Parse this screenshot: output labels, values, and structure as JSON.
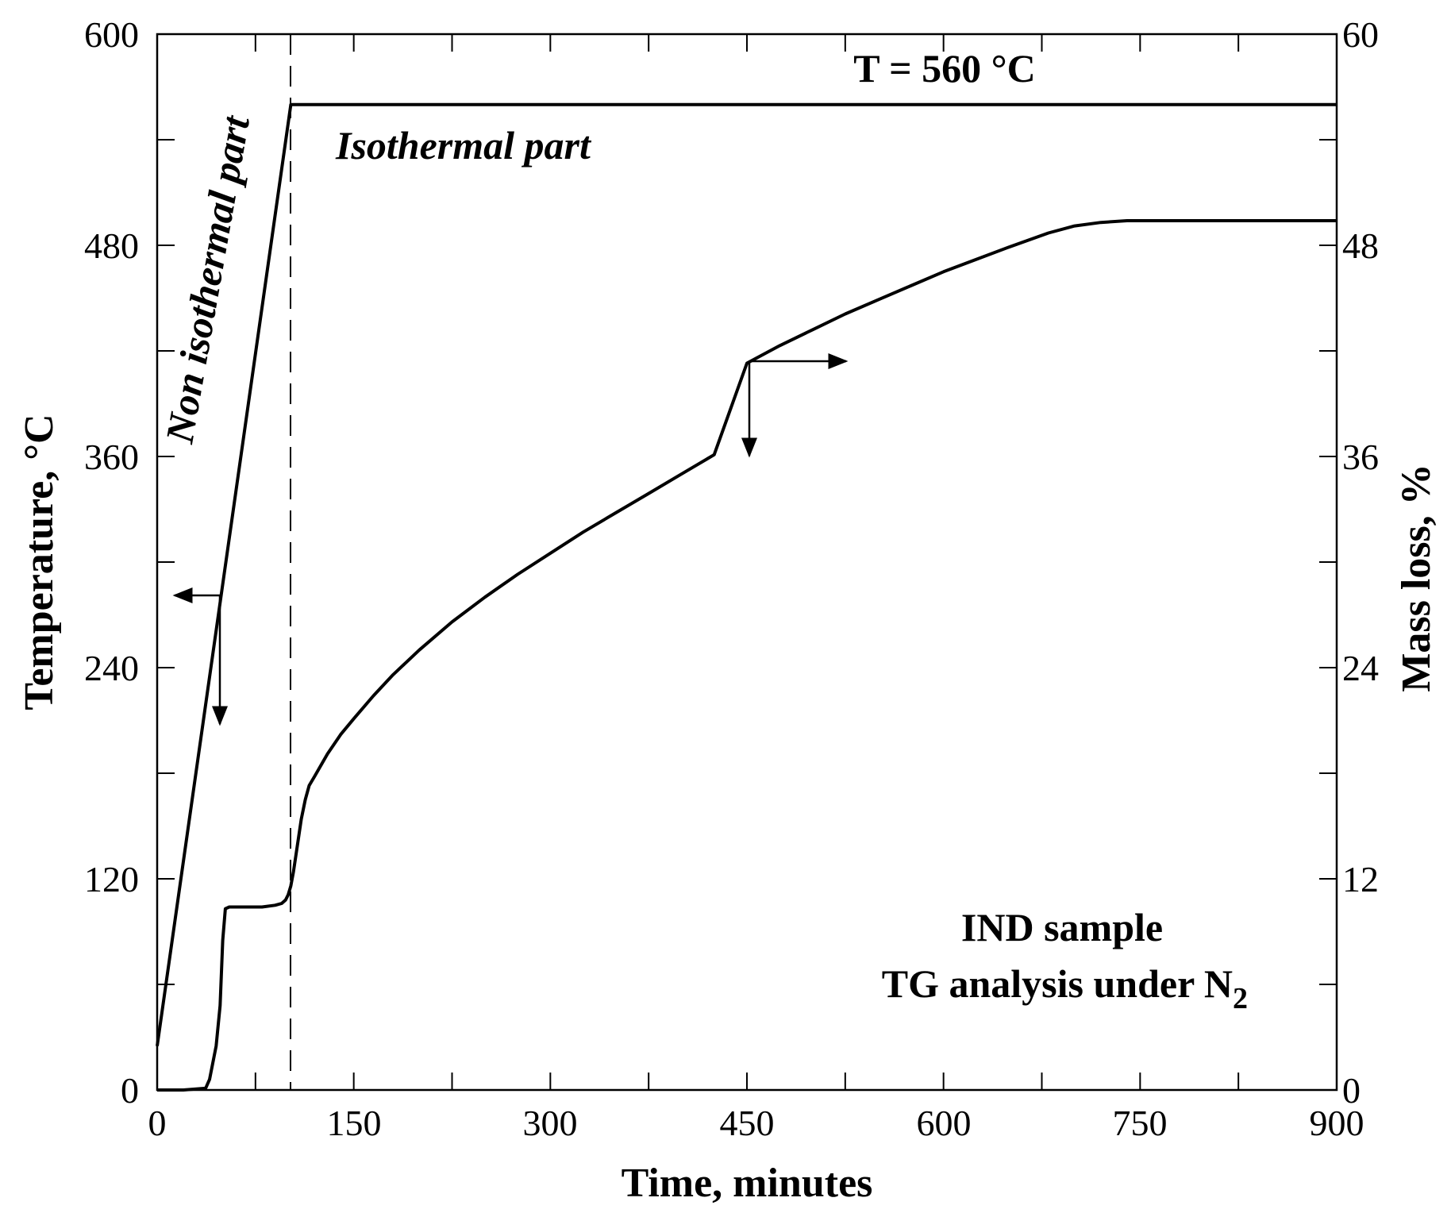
{
  "chart_data": {
    "type": "line",
    "title": "",
    "xlabel": "Time, minutes",
    "ylabel_left": "Temperature, °C",
    "ylabel_right": "Mass loss, %",
    "xlim": [
      0,
      900
    ],
    "ylim_left": [
      0,
      600
    ],
    "ylim_right": [
      0,
      60
    ],
    "x_ticks": [
      "0",
      "150",
      "300",
      "450",
      "600",
      "750",
      "900"
    ],
    "y_ticks_left": [
      "0",
      "120",
      "240",
      "360",
      "480",
      "600"
    ],
    "y_ticks_right": [
      "0",
      "12",
      "24",
      "36",
      "48",
      "60"
    ],
    "grid": false,
    "series": [
      {
        "axis": "left",
        "x": [
          0,
          102,
          900
        ],
        "y": [
          25,
          560,
          560
        ]
      },
      {
        "axis": "right",
        "x": [
          0,
          20,
          37,
          40,
          45,
          48,
          50,
          52,
          55,
          60,
          70,
          80,
          90,
          95,
          98,
          100,
          102,
          104,
          106,
          108,
          110,
          113,
          116,
          120,
          130,
          140,
          150,
          165,
          180,
          200,
          225,
          250,
          275,
          300,
          325,
          350,
          375,
          400,
          425,
          450,
          475,
          500,
          525,
          550,
          575,
          600,
          625,
          650,
          680,
          700,
          720,
          740,
          760,
          800,
          850,
          900
        ],
        "y": [
          0,
          0,
          0.1,
          0.6,
          2.5,
          4.8,
          8.5,
          10.3,
          10.4,
          10.4,
          10.4,
          10.4,
          10.5,
          10.6,
          10.8,
          11.1,
          11.6,
          12.4,
          13.4,
          14.4,
          15.4,
          16.5,
          17.3,
          17.8,
          19.1,
          20.2,
          21.1,
          22.4,
          23.6,
          25.0,
          26.6,
          28.0,
          29.3,
          30.5,
          31.7,
          32.8,
          33.9,
          35.0,
          36.1,
          41.3,
          42.3,
          43.2,
          44.1,
          44.9,
          45.7,
          46.5,
          47.2,
          47.9,
          48.7,
          49.1,
          49.3,
          49.4,
          49.4,
          49.4,
          49.4,
          49.4
        ]
      }
    ],
    "annotations": {
      "t_label": "T = 560 °C",
      "isothermal": "Isothermal part",
      "non_isothermal": "Non isothermal part",
      "sample_line1": "IND sample",
      "sample_line2_prefix": "TG analysis under N",
      "sample_line2_sub": "2"
    }
  }
}
